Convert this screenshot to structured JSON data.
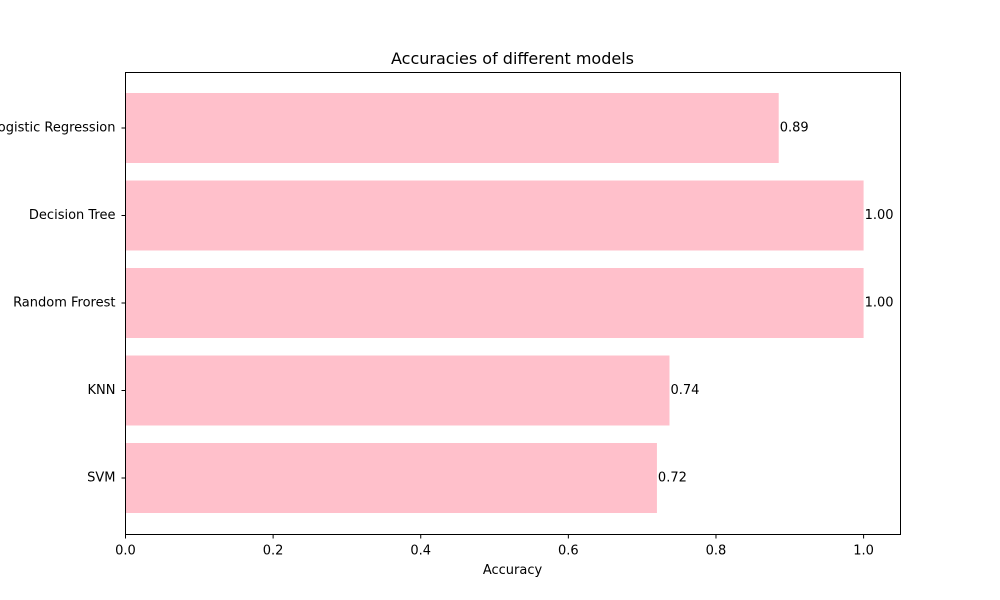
{
  "chart_data": {
    "type": "bar",
    "orientation": "horizontal",
    "title": "Accuracies of different models",
    "xlabel": "Accuracy",
    "ylabel": "",
    "categories": [
      "Logistic Regression",
      "Decision Tree",
      "Random Frorest",
      "KNN",
      "SVM"
    ],
    "values": [
      0.885,
      1.0,
      1.0,
      0.737,
      0.72
    ],
    "data_labels": [
      "0.89",
      "1.00",
      "1.00",
      "0.74",
      "0.72"
    ],
    "xlim": [
      0,
      1.05
    ],
    "xticks": [
      0.0,
      0.2,
      0.4,
      0.6,
      0.8,
      1.0
    ],
    "xtick_labels": [
      "0.0",
      "0.2",
      "0.4",
      "0.6",
      "0.8",
      "1.0"
    ],
    "grid": false,
    "bar_color": "#ffc0cb"
  }
}
